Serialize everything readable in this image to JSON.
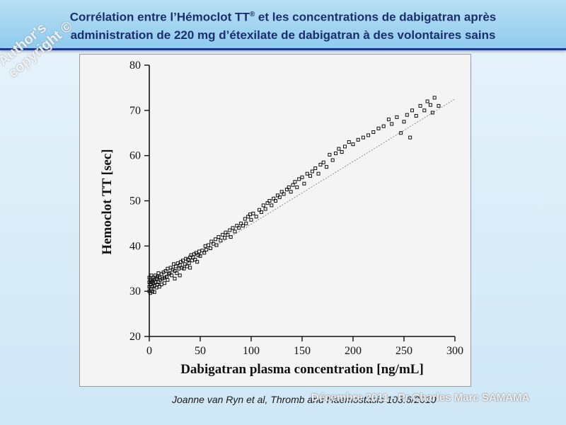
{
  "header": {
    "title_line1_prefix": "Corrélation entre l’Hémoclot TT",
    "title_line1_sup": "®",
    "title_line1_suffix": " et les concentrations de dabigatran après",
    "title_line2": "administration de 220 mg d’étexilate de dabigatran à des volontaires sains"
  },
  "watermarks": {
    "copyright_line1": "Author's",
    "copyright_line2": "copyright ©",
    "author": "Décembre 2011 - Pr Charles Marc SAMAMA"
  },
  "citation": "Joanne van Ryn et al, Thromb and Haemostasis 103.6/2010",
  "chart_data": {
    "type": "scatter",
    "xlabel": "Dabigatran plasma concentration [ng/mL]",
    "ylabel": "Hemoclot TT [sec]",
    "xlim": [
      0,
      300
    ],
    "ylim": [
      20,
      80
    ],
    "x_ticks": [
      0,
      50,
      100,
      150,
      200,
      250,
      300
    ],
    "y_ticks": [
      20,
      30,
      40,
      50,
      60,
      70,
      80
    ],
    "grid": false,
    "trendline": {
      "x": [
        0,
        300
      ],
      "y": [
        31.0,
        72.5
      ]
    },
    "series": [
      {
        "points": [
          [
            0,
            30
          ],
          [
            0,
            31
          ],
          [
            0,
            32
          ],
          [
            0,
            33
          ],
          [
            1,
            29.6
          ],
          [
            1,
            31.5
          ],
          [
            1,
            32.5
          ],
          [
            2,
            30.5
          ],
          [
            2,
            32
          ],
          [
            2,
            33.5
          ],
          [
            3,
            30
          ],
          [
            3,
            31
          ],
          [
            3,
            32.2
          ],
          [
            4,
            31.8
          ],
          [
            4,
            33
          ],
          [
            5,
            29.8
          ],
          [
            5,
            31.2
          ],
          [
            5,
            32.6
          ],
          [
            6,
            32
          ],
          [
            6,
            33.5
          ],
          [
            7,
            30.8
          ],
          [
            7,
            32.8
          ],
          [
            8,
            31.5
          ],
          [
            8,
            33.2
          ],
          [
            9,
            32
          ],
          [
            9,
            34
          ],
          [
            10,
            31
          ],
          [
            10,
            33
          ],
          [
            11,
            32.5
          ],
          [
            12,
            33.8
          ],
          [
            12,
            31.5
          ],
          [
            13,
            32.8
          ],
          [
            14,
            34.2
          ],
          [
            15,
            33
          ],
          [
            15,
            31.8
          ],
          [
            16,
            34.5
          ],
          [
            17,
            33.2
          ],
          [
            18,
            35
          ],
          [
            18,
            32.5
          ],
          [
            19,
            33.8
          ],
          [
            20,
            34
          ],
          [
            21,
            35.2
          ],
          [
            22,
            33.5
          ],
          [
            23,
            34.8
          ],
          [
            24,
            36
          ],
          [
            25,
            34.5
          ],
          [
            25,
            32.8
          ],
          [
            26,
            35.5
          ],
          [
            27,
            34
          ],
          [
            28,
            36.2
          ],
          [
            29,
            35
          ],
          [
            30,
            35.8
          ],
          [
            30,
            33.5
          ],
          [
            31,
            36.5
          ],
          [
            32,
            35.2
          ],
          [
            33,
            36.8
          ],
          [
            34,
            35
          ],
          [
            35,
            36
          ],
          [
            36,
            37.2
          ],
          [
            37,
            35.5
          ],
          [
            38,
            37
          ],
          [
            39,
            36.2
          ],
          [
            40,
            37.5
          ],
          [
            40,
            35.2
          ],
          [
            41,
            38
          ],
          [
            42,
            36.8
          ],
          [
            43,
            37.5
          ],
          [
            44,
            38.2
          ],
          [
            45,
            37
          ],
          [
            46,
            38.5
          ],
          [
            47,
            36.5
          ],
          [
            48,
            38
          ],
          [
            49,
            38.8
          ],
          [
            50,
            37.8
          ],
          [
            52,
            39
          ],
          [
            54,
            38.5
          ],
          [
            55,
            40
          ],
          [
            56,
            39.2
          ],
          [
            58,
            40.2
          ],
          [
            60,
            39.5
          ],
          [
            61,
            41
          ],
          [
            63,
            40.5
          ],
          [
            65,
            41.5
          ],
          [
            66,
            40.2
          ],
          [
            68,
            42
          ],
          [
            70,
            41.2
          ],
          [
            72,
            42.5
          ],
          [
            74,
            41.8
          ],
          [
            75,
            43
          ],
          [
            77,
            42.5
          ],
          [
            79,
            43.5
          ],
          [
            80,
            42
          ],
          [
            82,
            44
          ],
          [
            84,
            43.2
          ],
          [
            86,
            44.5
          ],
          [
            88,
            44
          ],
          [
            90,
            45
          ],
          [
            92,
            44.5
          ],
          [
            94,
            46
          ],
          [
            95,
            45
          ],
          [
            97,
            46.5
          ],
          [
            99,
            47
          ],
          [
            100,
            45.8
          ],
          [
            102,
            47.2
          ],
          [
            105,
            46.5
          ],
          [
            108,
            48
          ],
          [
            110,
            47.5
          ],
          [
            112,
            49
          ],
          [
            114,
            48.2
          ],
          [
            116,
            49.5
          ],
          [
            118,
            50
          ],
          [
            120,
            49
          ],
          [
            122,
            50.5
          ],
          [
            124,
            50
          ],
          [
            126,
            51.2
          ],
          [
            128,
            50.8
          ],
          [
            130,
            52
          ],
          [
            132,
            51.5
          ],
          [
            135,
            52.5
          ],
          [
            137,
            53
          ],
          [
            139,
            52
          ],
          [
            141,
            53.5
          ],
          [
            143,
            54.2
          ],
          [
            145,
            53
          ],
          [
            147,
            54.8
          ],
          [
            150,
            55.2
          ],
          [
            152,
            53.8
          ],
          [
            155,
            56
          ],
          [
            158,
            55.5
          ],
          [
            160,
            56.5
          ],
          [
            163,
            57.2
          ],
          [
            166,
            56
          ],
          [
            168,
            58
          ],
          [
            171,
            58.5
          ],
          [
            174,
            57.5
          ],
          [
            177,
            60.2
          ],
          [
            180,
            59
          ],
          [
            183,
            60.5
          ],
          [
            186,
            61.5
          ],
          [
            189,
            60.8
          ],
          [
            192,
            62
          ],
          [
            196,
            63
          ],
          [
            200,
            62.5
          ],
          [
            205,
            63.5
          ],
          [
            210,
            64
          ],
          [
            215,
            64.5
          ],
          [
            220,
            65.2
          ],
          [
            225,
            66
          ],
          [
            230,
            66.5
          ],
          [
            235,
            68
          ],
          [
            238,
            67
          ],
          [
            243,
            68.5
          ],
          [
            247,
            65
          ],
          [
            250,
            67.5
          ],
          [
            253,
            69
          ],
          [
            256,
            64
          ],
          [
            258,
            70
          ],
          [
            262,
            68.8
          ],
          [
            266,
            71
          ],
          [
            270,
            70
          ],
          [
            273,
            72
          ],
          [
            276,
            71.2
          ],
          [
            278,
            69.5
          ],
          [
            280,
            72.8
          ],
          [
            284,
            71
          ]
        ]
      }
    ]
  },
  "colors": {
    "header_top": "#b9dff4",
    "header_bottom": "#8fcbee",
    "header_border": "#1b3a8c",
    "title_text": "#1a2f6b",
    "background": "#d9ecf8",
    "figure_bg": "#f4f4f4"
  }
}
